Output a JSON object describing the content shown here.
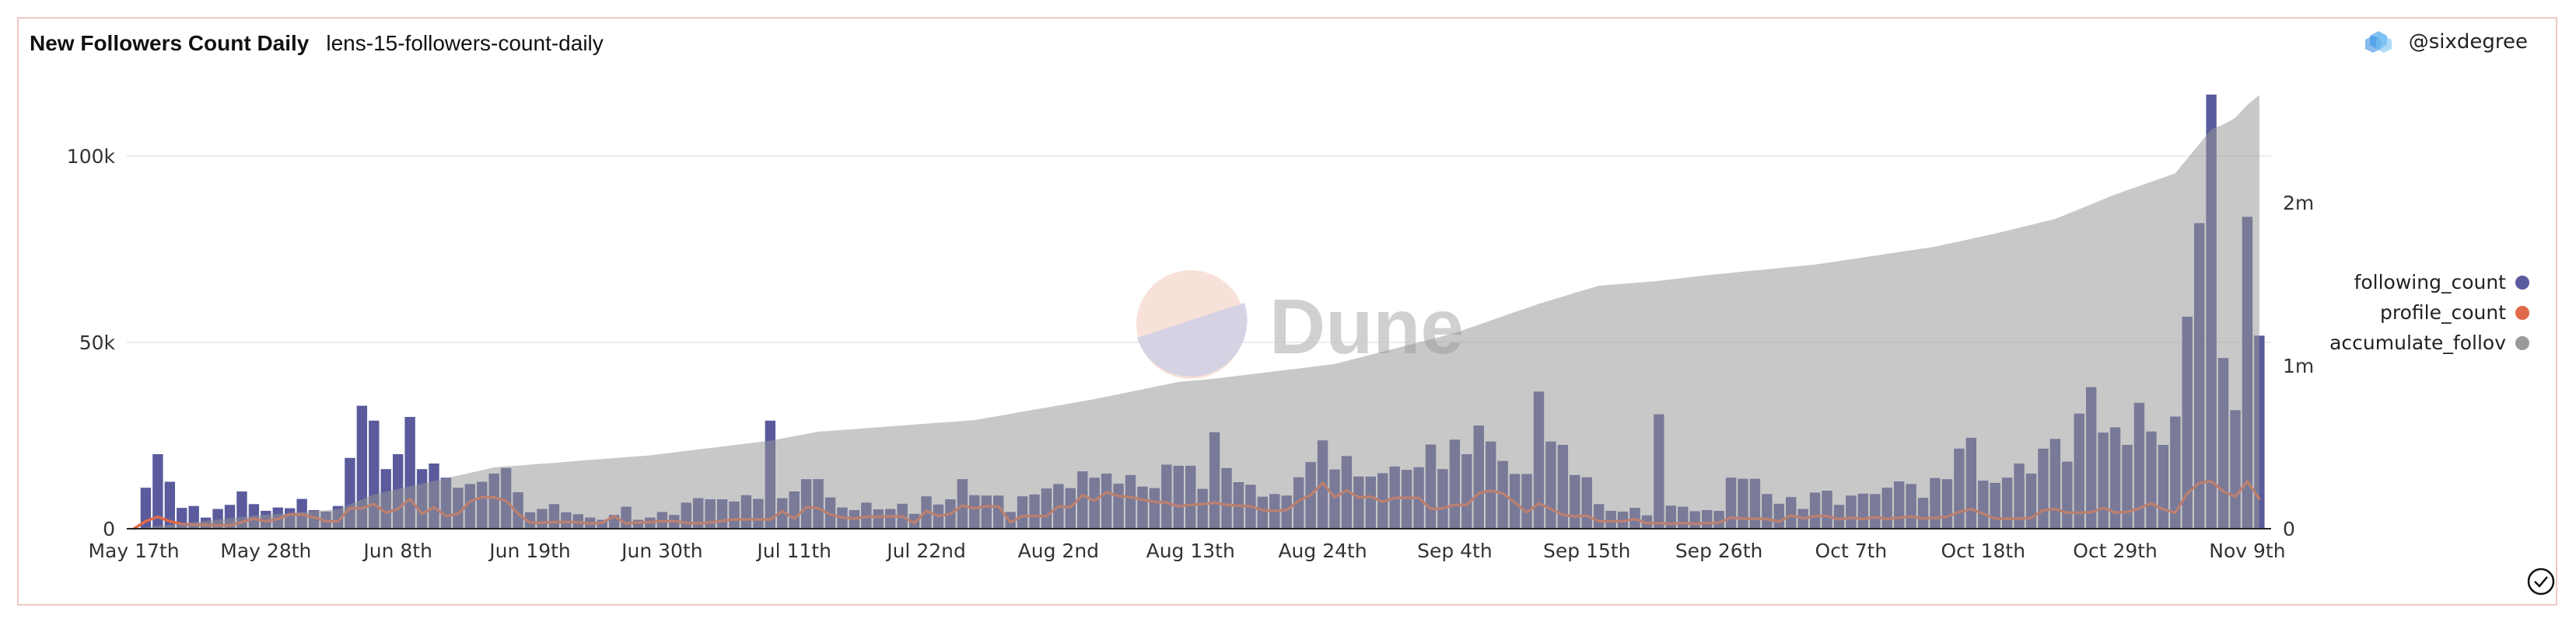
{
  "header": {
    "title": "New Followers Count Daily",
    "query_name": "lens-15-followers-count-daily",
    "author": "@sixdegree"
  },
  "watermark": "Dune",
  "colors": {
    "following_count": "#5a5b9c",
    "profile_count": "#e0694a",
    "accumulate": "#9a9a9a",
    "border": "#f0c8c2"
  },
  "chart_data": {
    "type": "bar",
    "title": "New Followers Count Daily",
    "x_start": "May 17th",
    "x_end": "Nov 10th",
    "x_unit": "day",
    "x_tick_labels": [
      "May 17th",
      "May 28th",
      "Jun 8th",
      "Jun 19th",
      "Jun 30th",
      "Jul 11th",
      "Jul 22nd",
      "Aug 2nd",
      "Aug 13th",
      "Aug 24th",
      "Sep 4th",
      "Sep 15th",
      "Sep 26th",
      "Oct 7th",
      "Oct 18th",
      "Oct 29th",
      "Nov 9th"
    ],
    "x_tick_every_days": 11,
    "y_left": {
      "ticks": [
        0,
        50000,
        100000
      ],
      "tick_labels": [
        "0",
        "50k",
        "100k"
      ],
      "range": [
        0,
        117000
      ]
    },
    "y_right": {
      "ticks": [
        0,
        1000000,
        2000000
      ],
      "tick_labels": [
        "0",
        "1m",
        "2m"
      ],
      "range": [
        0,
        2700000
      ]
    },
    "grid": true,
    "legend_position": "right",
    "legend": [
      "following_count",
      "profile_count",
      "accumulate_follov"
    ],
    "units": "thousands",
    "series": [
      {
        "name": "following_count",
        "type": "bar",
        "axis": "left",
        "values": [
          0,
          11,
          20,
          12.6,
          5.6,
          6.1,
          3,
          5.3,
          6.4,
          10,
          6.6,
          4.8,
          5.7,
          5.5,
          8,
          5,
          4.6,
          6.1,
          19,
          33,
          29,
          16,
          20,
          30,
          16,
          17.5,
          13.7,
          11,
          12,
          12.6,
          14.8,
          16.3,
          9.8,
          4.4,
          5.3,
          6.6,
          4.4,
          3.9,
          3,
          2.4,
          3.7,
          5.9,
          2.4,
          3,
          4.5,
          3.7,
          7,
          8.2,
          7.9,
          7.9,
          7.3,
          9,
          8,
          29,
          8.2,
          10,
          13.3,
          13.3,
          8.4,
          5.7,
          5,
          7,
          5.2,
          5.3,
          6.7,
          4,
          8.7,
          6.5,
          7.9,
          13.3,
          9,
          8.9,
          8.9,
          4.5,
          8.7,
          9.2,
          10.8,
          12,
          10.9,
          15.4,
          13.7,
          14.8,
          12.1,
          14.4,
          11.3,
          10.9,
          17.2,
          16.9,
          16.9,
          10.7,
          25.9,
          16.3,
          12.5,
          11.8,
          8.6,
          9.3,
          8.9,
          13.8,
          17.9,
          23.7,
          15.9,
          19.5,
          14,
          14,
          14.9,
          16.7,
          15.8,
          16.5,
          22.6,
          16,
          23.9,
          20,
          27.7,
          23.4,
          18.2,
          14.7,
          14.7,
          36.8,
          23.4,
          22.5,
          14.4,
          13.8,
          6.6,
          4.8,
          4.6,
          5.6,
          3.6,
          30.7,
          6.2,
          5.9,
          4.7,
          5,
          4.8,
          13.7,
          13.4,
          13.4,
          9.3,
          6.7,
          8.5,
          5.3,
          9.7,
          10.2,
          6.4,
          8.9,
          9.4,
          9.3,
          11,
          12.7,
          12,
          8.3,
          13.6,
          13.3,
          21.5,
          24.4,
          12.9,
          12.3,
          13.7,
          17.5,
          14.8,
          21.5,
          24.1,
          18,
          30.9,
          38,
          25.8,
          27.2,
          22.5,
          33.8,
          26.1,
          22.5,
          30.1,
          56.9,
          82,
          116.5,
          45.8,
          31.8,
          83.7,
          51.8
        ]
      },
      {
        "name": "profile_count",
        "type": "line",
        "axis": "left",
        "values": [
          0,
          2,
          3.2,
          2,
          1.3,
          1.1,
          1,
          0.9,
          0.9,
          1.8,
          2.7,
          2,
          2.6,
          3.9,
          3.8,
          3,
          2,
          2,
          5.5,
          5.5,
          6.6,
          4.3,
          5.3,
          8,
          4,
          5.7,
          3.4,
          4,
          7.3,
          8.5,
          8.4,
          7.5,
          4,
          1.6,
          1.6,
          1.8,
          1.8,
          1.7,
          1.4,
          1.6,
          3.3,
          1.4,
          1.6,
          1.8,
          2,
          2,
          1.6,
          1.4,
          1.7,
          2.1,
          2.5,
          2.5,
          2.5,
          2.5,
          4.7,
          2.7,
          5.8,
          5.5,
          3.8,
          3,
          2.7,
          3.2,
          3.2,
          3.3,
          3.3,
          1.5,
          4.8,
          3.4,
          4,
          6.2,
          5.5,
          6,
          6,
          1.7,
          3.4,
          3.4,
          3.4,
          6,
          5.8,
          9,
          7.5,
          9.8,
          8.8,
          8.5,
          7.8,
          7.2,
          7,
          6,
          6.4,
          6.6,
          7,
          6.4,
          6.2,
          6,
          5,
          4.8,
          5,
          7.5,
          9,
          12.3,
          8.5,
          10.3,
          8.4,
          8.6,
          7.2,
          8.3,
          8.3,
          8.3,
          5.3,
          5.5,
          6.4,
          6.4,
          9.5,
          10.2,
          9.5,
          7,
          4.4,
          6.8,
          5.3,
          3.7,
          3.3,
          3.5,
          2,
          2,
          2,
          2.6,
          1.5,
          1.5,
          1.3,
          1.5,
          1.3,
          1.5,
          1.6,
          3,
          2.7,
          2.7,
          2.6,
          1.9,
          3.6,
          2.8,
          3.4,
          3.4,
          2.5,
          3,
          2.6,
          3.1,
          2.6,
          3,
          3.2,
          2.8,
          2.9,
          3.2,
          4.5,
          5.3,
          4,
          2.7,
          2.7,
          2.7,
          2.9,
          5,
          5.3,
          4.3,
          4.3,
          4.4,
          5.6,
          4.3,
          4.5,
          5.5,
          6.8,
          5.2,
          4.3,
          9.5,
          12.3,
          12.7,
          10,
          8.6,
          12.7,
          8
        ]
      },
      {
        "name": "accumulate_follov",
        "type": "area",
        "axis": "right",
        "values": [
          0,
          8,
          16,
          24,
          32,
          40,
          48,
          56,
          64,
          72,
          80,
          86,
          91,
          97,
          103,
          109,
          114,
          120,
          150,
          180,
          210,
          227,
          243,
          260,
          276,
          293,
          310,
          326,
          343,
          359,
          376,
          382,
          387,
          393,
          399,
          404,
          410,
          416,
          422,
          427,
          433,
          439,
          444,
          450,
          459,
          468,
          477,
          486,
          495,
          504,
          513,
          522,
          531,
          540,
          554,
          568,
          581,
          595,
          600,
          606,
          611,
          617,
          622,
          628,
          633,
          639,
          644,
          650,
          655,
          661,
          666,
          679,
          692,
          705,
          718,
          731,
          743,
          756,
          769,
          782,
          795,
          810,
          825,
          840,
          855,
          870,
          885,
          900,
          907,
          913,
          920,
          929,
          938,
          947,
          956,
          965,
          974,
          983,
          992,
          1001,
          1010,
          1029,
          1048,
          1067,
          1086,
          1105,
          1124,
          1143,
          1162,
          1181,
          1200,
          1226,
          1251,
          1277,
          1303,
          1329,
          1354,
          1380,
          1402,
          1424,
          1446,
          1468,
          1490,
          1496,
          1502,
          1508,
          1514,
          1520,
          1529,
          1538,
          1546,
          1555,
          1562,
          1569,
          1577,
          1584,
          1591,
          1598,
          1606,
          1613,
          1620,
          1631,
          1642,
          1653,
          1664,
          1675,
          1686,
          1697,
          1708,
          1719,
          1730,
          1746,
          1762,
          1778,
          1794,
          1810,
          1828,
          1846,
          1864,
          1882,
          1900,
          1930,
          1960,
          1990,
          2020,
          2050,
          2076,
          2102,
          2128,
          2154,
          2180,
          2270,
          2360,
          2450,
          2480,
          2520,
          2600,
          2660
        ]
      }
    ]
  }
}
